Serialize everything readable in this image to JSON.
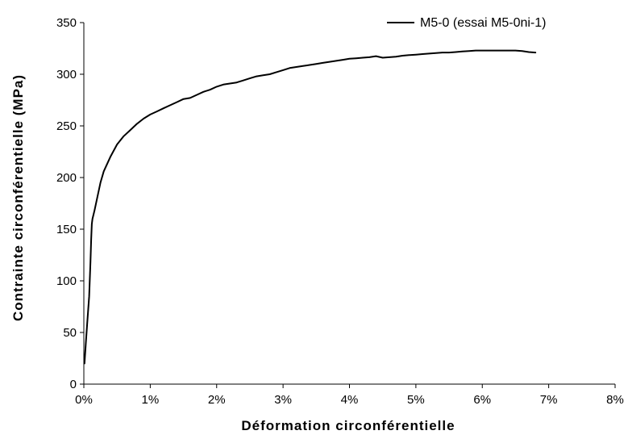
{
  "chart_data": {
    "type": "line",
    "title": "",
    "xlabel": "Déformation circonférentielle",
    "ylabel": "Contrainte circonférentielle (MPa)",
    "xlim": [
      0,
      0.08
    ],
    "ylim": [
      0,
      350
    ],
    "x_ticks": [
      0,
      0.01,
      0.02,
      0.03,
      0.04,
      0.05,
      0.06,
      0.07,
      0.08
    ],
    "x_tick_labels": [
      "0%",
      "1%",
      "2%",
      "3%",
      "4%",
      "5%",
      "6%",
      "7%",
      "8%"
    ],
    "y_ticks": [
      0,
      50,
      100,
      150,
      200,
      250,
      300,
      350
    ],
    "y_tick_labels": [
      "0",
      "50",
      "100",
      "150",
      "200",
      "250",
      "300",
      "350"
    ],
    "grid": false,
    "legend_position": "top-right",
    "series": [
      {
        "name": "M5-0 (essai M5-0ni-1)",
        "color": "#000000",
        "x": [
          0.0001,
          0.0003,
          0.0005,
          0.0008,
          0.001,
          0.0011,
          0.0012,
          0.0013,
          0.0016,
          0.002,
          0.0025,
          0.003,
          0.004,
          0.005,
          0.006,
          0.007,
          0.008,
          0.009,
          0.01,
          0.011,
          0.012,
          0.013,
          0.014,
          0.015,
          0.016,
          0.017,
          0.018,
          0.019,
          0.02,
          0.021,
          0.022,
          0.023,
          0.024,
          0.025,
          0.026,
          0.027,
          0.028,
          0.029,
          0.03,
          0.031,
          0.032,
          0.033,
          0.034,
          0.035,
          0.036,
          0.037,
          0.038,
          0.039,
          0.04,
          0.041,
          0.042,
          0.043,
          0.044,
          0.045,
          0.046,
          0.047,
          0.048,
          0.049,
          0.05,
          0.051,
          0.052,
          0.053,
          0.054,
          0.055,
          0.056,
          0.057,
          0.058,
          0.059,
          0.06,
          0.062,
          0.064,
          0.065,
          0.066,
          0.067,
          0.068
        ],
        "y": [
          20,
          40,
          58,
          85,
          118,
          140,
          155,
          160,
          168,
          180,
          195,
          206,
          220,
          232,
          240,
          246,
          252,
          257,
          261,
          264,
          267,
          270,
          273,
          276,
          277,
          280,
          283,
          285,
          288,
          290,
          291,
          292,
          294,
          296,
          298,
          299,
          300,
          302,
          304,
          306,
          307,
          308,
          309,
          310,
          311,
          312,
          313,
          314,
          315,
          315.5,
          316,
          316.5,
          317.5,
          316,
          316.5,
          317,
          318,
          318.5,
          319,
          319.5,
          320,
          320.5,
          321,
          321,
          321.5,
          322,
          322.5,
          323,
          323,
          323,
          323,
          323,
          322.5,
          321.5,
          321
        ]
      }
    ]
  }
}
